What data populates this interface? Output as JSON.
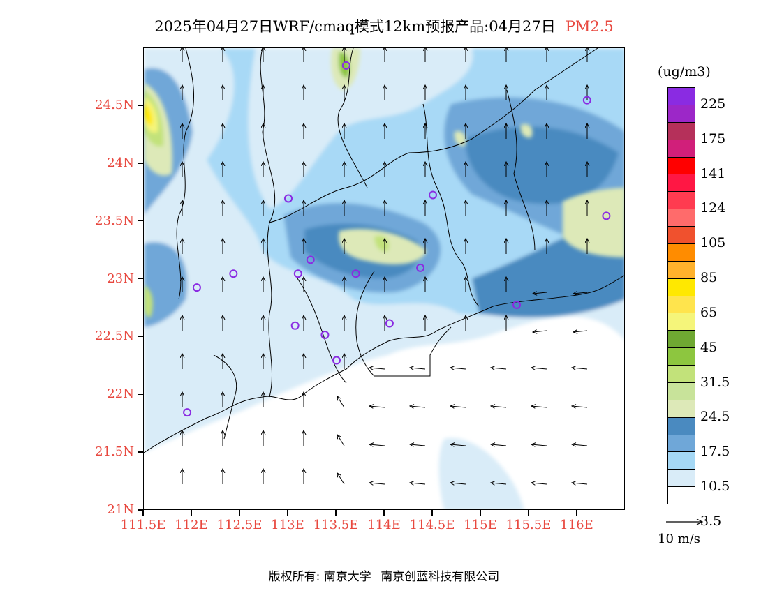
{
  "header": {
    "title": "2025年04月27日WRF/cmaq模式12km预报产品:04月27日",
    "pollutant": "PM2.5"
  },
  "map": {
    "lat_labels": [
      "24.5N",
      "24N",
      "23.5N",
      "23N",
      "22.5N",
      "22N",
      "21.5N",
      "21N"
    ],
    "lat_values": [
      24.5,
      24,
      23.5,
      23,
      22.5,
      22,
      21.5,
      21
    ],
    "lon_labels": [
      "111.5E",
      "112E",
      "112.5E",
      "113E",
      "113.5E",
      "114E",
      "114.5E",
      "115E",
      "115.5E",
      "116E"
    ],
    "lon_values": [
      111.5,
      112,
      112.5,
      113,
      113.5,
      114,
      114.5,
      115,
      115.5,
      116
    ],
    "lat_range": [
      21,
      25
    ],
    "lon_range": [
      111.5,
      116.5
    ],
    "stations": [
      {
        "lon": 113.6,
        "lat": 24.85
      },
      {
        "lon": 116.1,
        "lat": 24.55
      },
      {
        "lon": 114.5,
        "lat": 23.73
      },
      {
        "lon": 113.0,
        "lat": 23.7
      },
      {
        "lon": 116.3,
        "lat": 23.55
      },
      {
        "lon": 113.23,
        "lat": 23.17
      },
      {
        "lon": 112.43,
        "lat": 23.05
      },
      {
        "lon": 113.1,
        "lat": 23.05
      },
      {
        "lon": 113.7,
        "lat": 23.05
      },
      {
        "lon": 114.37,
        "lat": 23.1
      },
      {
        "lon": 112.05,
        "lat": 22.93
      },
      {
        "lon": 115.37,
        "lat": 22.78
      },
      {
        "lon": 113.07,
        "lat": 22.6
      },
      {
        "lon": 114.05,
        "lat": 22.62
      },
      {
        "lon": 113.38,
        "lat": 22.52
      },
      {
        "lon": 113.5,
        "lat": 22.3
      },
      {
        "lon": 111.95,
        "lat": 21.85
      }
    ]
  },
  "legend": {
    "unit": "(ug/m3)",
    "colors": [
      "#8a2be2",
      "#9c27c8",
      "#b5305a",
      "#d11f7a",
      "#ff0000",
      "#ff1744",
      "#ff3b50",
      "#ff6b6b",
      "#f0512e",
      "#ff8c00",
      "#ffb22c",
      "#ffe800",
      "#ffe44d",
      "#f5f57a",
      "#6fa832",
      "#8dc63f",
      "#c2e27a",
      "#c8e39a",
      "#dde9b8",
      "#4a8ac0",
      "#6fa7d8",
      "#a5d8f5",
      "#d9ecf8",
      "#ffffff"
    ],
    "labels": [
      "225",
      "175",
      "141",
      "124",
      "105",
      "85",
      "65",
      "45",
      "31.5",
      "24.5",
      "17.5",
      "10.5",
      "3.5"
    ],
    "wind_ref": "10 m/s"
  },
  "footer": {
    "copyright": "版权所有: 南京大学",
    "company": "南京创蓝科技有限公司"
  }
}
